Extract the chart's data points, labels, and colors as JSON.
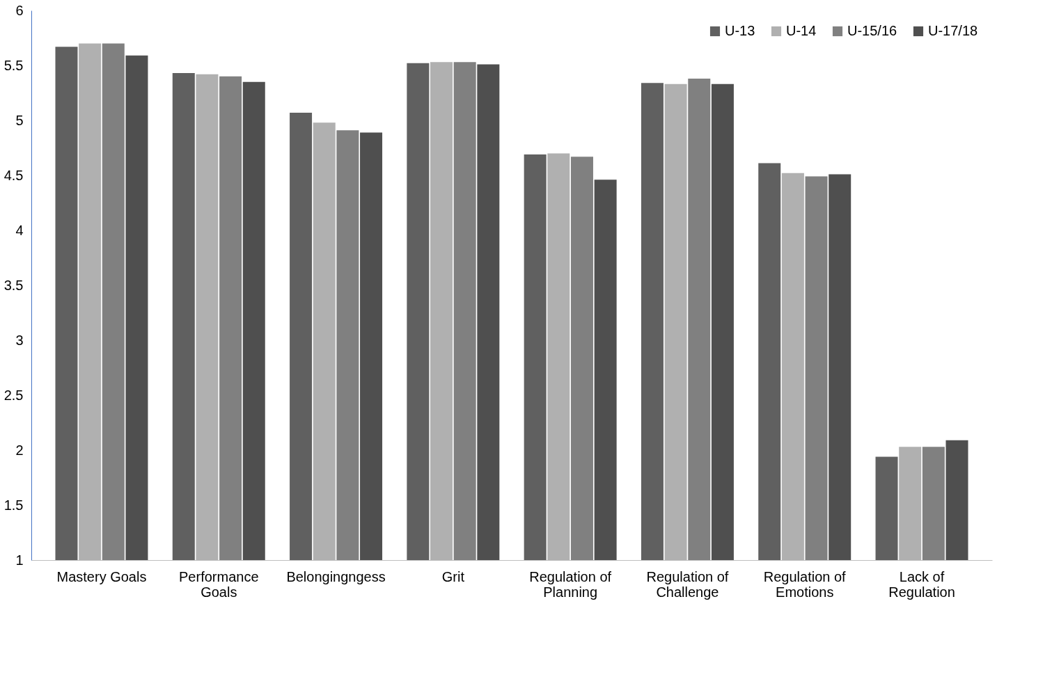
{
  "chart_data": {
    "type": "bar",
    "categories": [
      "Mastery Goals",
      "Performance Goals",
      "Belongingngess",
      "Grit",
      "Regulation of Planning",
      "Regulation of Challenge",
      "Regulation of Emotions",
      "Lack of Regulation"
    ],
    "series": [
      {
        "name": "U-13",
        "color": "#606060",
        "values": [
          5.67,
          5.43,
          5.07,
          5.52,
          4.69,
          5.34,
          4.61,
          1.94
        ]
      },
      {
        "name": "U-14",
        "color": "#b0b0b0",
        "values": [
          5.7,
          5.42,
          4.98,
          5.53,
          4.7,
          5.33,
          4.52,
          2.03
        ]
      },
      {
        "name": "U-15/16",
        "color": "#808080",
        "values": [
          5.7,
          5.4,
          4.91,
          5.53,
          4.67,
          5.38,
          4.49,
          2.03
        ]
      },
      {
        "name": "U-17/18",
        "color": "#4f4f4f",
        "values": [
          5.59,
          5.35,
          4.89,
          5.51,
          4.46,
          5.33,
          4.51,
          2.09
        ]
      }
    ],
    "ylim": [
      1,
      6
    ],
    "yticks": [
      1,
      1.5,
      2,
      2.5,
      3,
      3.5,
      4,
      4.5,
      5,
      5.5,
      6
    ],
    "grid": false,
    "legend": "top right"
  }
}
